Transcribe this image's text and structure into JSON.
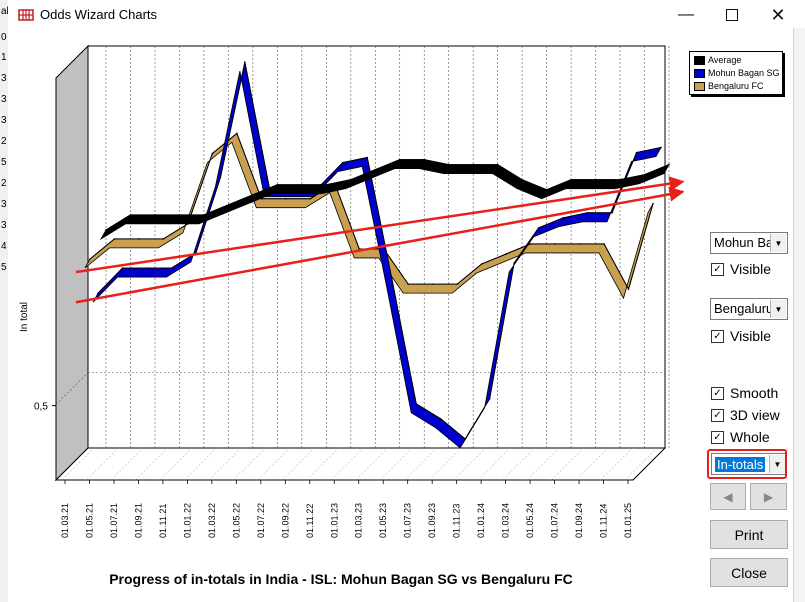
{
  "window": {
    "title": "Odds Wizard Charts",
    "minimize_icon": "minimize-icon",
    "maximize_icon": "maximize-icon",
    "close_icon": "close-icon"
  },
  "background_sheet": {
    "left_cells": [
      "al",
      "0",
      "1",
      "3",
      "3",
      "3",
      "2",
      "5",
      "2",
      "3",
      "3",
      "4",
      "5"
    ]
  },
  "chart_data": {
    "type": "line",
    "view": "3d",
    "title": "Progress of in-totals in India - ISL: Mohun Bagan SG vs Bengaluru FC",
    "ylabel": "In total",
    "y_tick_labels": [
      "0,5"
    ],
    "x": [
      "01.03.21",
      "01.05.21",
      "01.07.21",
      "01.09.21",
      "01.11.21",
      "01.01.22",
      "01.03.22",
      "01.05.22",
      "01.07.22",
      "01.09.22",
      "01.11.22",
      "01.01.23",
      "01.03.23",
      "01.05.23",
      "01.07.23",
      "01.09.23",
      "01.11.23",
      "01.01.24",
      "01.03.24",
      "01.05.24",
      "01.07.24",
      "01.09.24",
      "01.11.24",
      "01.01.25"
    ],
    "ylim": [
      0.35,
      1.15
    ],
    "grid": true,
    "legend": "top-right",
    "series": [
      {
        "name": "Average",
        "color": "#000000",
        "values": [
          0.78,
          0.81,
          0.81,
          0.81,
          0.81,
          0.83,
          0.85,
          0.87,
          0.87,
          0.87,
          0.88,
          0.9,
          0.92,
          0.92,
          0.91,
          0.91,
          0.91,
          0.88,
          0.86,
          0.88,
          0.88,
          0.88,
          0.89,
          0.91
        ]
      },
      {
        "name": "Mohun Bagan SG",
        "color": "#0000cc",
        "values": [
          0.67,
          0.72,
          0.72,
          0.72,
          0.75,
          0.9,
          1.13,
          0.88,
          0.88,
          0.88,
          0.93,
          0.94,
          0.7,
          0.45,
          0.42,
          0.38,
          0.46,
          0.73,
          0.8,
          0.82,
          0.83,
          0.83,
          0.95,
          0.96
        ]
      },
      {
        "name": "Bengaluru FC",
        "color": "#c8a050",
        "values": [
          0.75,
          0.79,
          0.79,
          0.79,
          0.82,
          0.96,
          1.0,
          0.87,
          0.87,
          0.87,
          0.9,
          0.77,
          0.77,
          0.7,
          0.7,
          0.7,
          0.74,
          0.76,
          0.78,
          0.78,
          0.78,
          0.78,
          0.69,
          0.86
        ]
      }
    ],
    "annotations": [
      {
        "type": "trend-arrow",
        "color": "#e8201c",
        "from_x": "01.03.21",
        "from_y": 0.72,
        "to_x": "01.01.25",
        "to_y": 0.88
      },
      {
        "type": "trend-arrow",
        "color": "#e8201c",
        "from_x": "01.03.21",
        "from_y": 0.66,
        "to_x": "01.01.25",
        "to_y": 0.86
      }
    ]
  },
  "controls": {
    "series_select_1": "Mohun Ba",
    "visible_1": "Visible",
    "series_select_2": "Bengaluru",
    "visible_2": "Visible",
    "smooth": "Smooth",
    "view3d": "3D view",
    "whole": "Whole",
    "mode_select": "In-totals",
    "prev_icon": "triangle-left-icon",
    "next_icon": "triangle-right-icon",
    "print": "Print",
    "close": "Close",
    "highlight_color": "#e8201c"
  }
}
